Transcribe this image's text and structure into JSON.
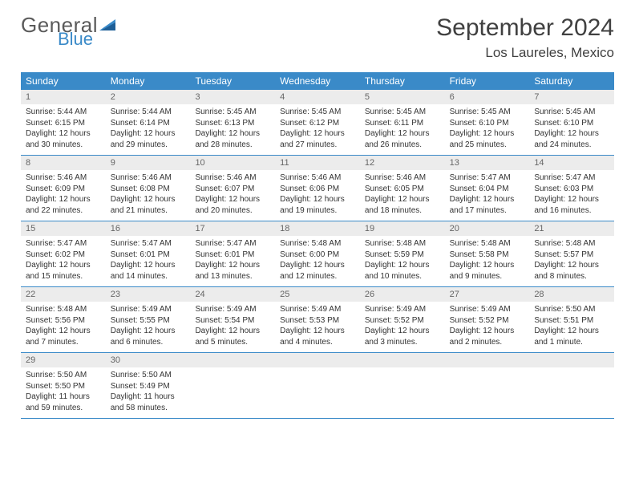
{
  "brand": {
    "word1": "General",
    "word2": "Blue",
    "word1_color": "#5a5a5a",
    "word2_color": "#3a8ac8"
  },
  "header": {
    "month_title": "September 2024",
    "location": "Los Laureles, Mexico"
  },
  "colors": {
    "header_bar": "#3a8ac8",
    "daynum_bg": "#ececec",
    "border": "#3a8ac8",
    "page_bg": "#ffffff"
  },
  "typography": {
    "title_size": 30,
    "location_size": 17,
    "weekday_size": 12,
    "daynum_size": 11,
    "body_size": 10
  },
  "weekdays": [
    "Sunday",
    "Monday",
    "Tuesday",
    "Wednesday",
    "Thursday",
    "Friday",
    "Saturday"
  ],
  "weeks": [
    [
      {
        "n": "1",
        "sr": "5:44 AM",
        "ss": "6:15 PM",
        "dl": "12 hours and 30 minutes."
      },
      {
        "n": "2",
        "sr": "5:44 AM",
        "ss": "6:14 PM",
        "dl": "12 hours and 29 minutes."
      },
      {
        "n": "3",
        "sr": "5:45 AM",
        "ss": "6:13 PM",
        "dl": "12 hours and 28 minutes."
      },
      {
        "n": "4",
        "sr": "5:45 AM",
        "ss": "6:12 PM",
        "dl": "12 hours and 27 minutes."
      },
      {
        "n": "5",
        "sr": "5:45 AM",
        "ss": "6:11 PM",
        "dl": "12 hours and 26 minutes."
      },
      {
        "n": "6",
        "sr": "5:45 AM",
        "ss": "6:10 PM",
        "dl": "12 hours and 25 minutes."
      },
      {
        "n": "7",
        "sr": "5:45 AM",
        "ss": "6:10 PM",
        "dl": "12 hours and 24 minutes."
      }
    ],
    [
      {
        "n": "8",
        "sr": "5:46 AM",
        "ss": "6:09 PM",
        "dl": "12 hours and 22 minutes."
      },
      {
        "n": "9",
        "sr": "5:46 AM",
        "ss": "6:08 PM",
        "dl": "12 hours and 21 minutes."
      },
      {
        "n": "10",
        "sr": "5:46 AM",
        "ss": "6:07 PM",
        "dl": "12 hours and 20 minutes."
      },
      {
        "n": "11",
        "sr": "5:46 AM",
        "ss": "6:06 PM",
        "dl": "12 hours and 19 minutes."
      },
      {
        "n": "12",
        "sr": "5:46 AM",
        "ss": "6:05 PM",
        "dl": "12 hours and 18 minutes."
      },
      {
        "n": "13",
        "sr": "5:47 AM",
        "ss": "6:04 PM",
        "dl": "12 hours and 17 minutes."
      },
      {
        "n": "14",
        "sr": "5:47 AM",
        "ss": "6:03 PM",
        "dl": "12 hours and 16 minutes."
      }
    ],
    [
      {
        "n": "15",
        "sr": "5:47 AM",
        "ss": "6:02 PM",
        "dl": "12 hours and 15 minutes."
      },
      {
        "n": "16",
        "sr": "5:47 AM",
        "ss": "6:01 PM",
        "dl": "12 hours and 14 minutes."
      },
      {
        "n": "17",
        "sr": "5:47 AM",
        "ss": "6:01 PM",
        "dl": "12 hours and 13 minutes."
      },
      {
        "n": "18",
        "sr": "5:48 AM",
        "ss": "6:00 PM",
        "dl": "12 hours and 12 minutes."
      },
      {
        "n": "19",
        "sr": "5:48 AM",
        "ss": "5:59 PM",
        "dl": "12 hours and 10 minutes."
      },
      {
        "n": "20",
        "sr": "5:48 AM",
        "ss": "5:58 PM",
        "dl": "12 hours and 9 minutes."
      },
      {
        "n": "21",
        "sr": "5:48 AM",
        "ss": "5:57 PM",
        "dl": "12 hours and 8 minutes."
      }
    ],
    [
      {
        "n": "22",
        "sr": "5:48 AM",
        "ss": "5:56 PM",
        "dl": "12 hours and 7 minutes."
      },
      {
        "n": "23",
        "sr": "5:49 AM",
        "ss": "5:55 PM",
        "dl": "12 hours and 6 minutes."
      },
      {
        "n": "24",
        "sr": "5:49 AM",
        "ss": "5:54 PM",
        "dl": "12 hours and 5 minutes."
      },
      {
        "n": "25",
        "sr": "5:49 AM",
        "ss": "5:53 PM",
        "dl": "12 hours and 4 minutes."
      },
      {
        "n": "26",
        "sr": "5:49 AM",
        "ss": "5:52 PM",
        "dl": "12 hours and 3 minutes."
      },
      {
        "n": "27",
        "sr": "5:49 AM",
        "ss": "5:52 PM",
        "dl": "12 hours and 2 minutes."
      },
      {
        "n": "28",
        "sr": "5:50 AM",
        "ss": "5:51 PM",
        "dl": "12 hours and 1 minute."
      }
    ],
    [
      {
        "n": "29",
        "sr": "5:50 AM",
        "ss": "5:50 PM",
        "dl": "11 hours and 59 minutes."
      },
      {
        "n": "30",
        "sr": "5:50 AM",
        "ss": "5:49 PM",
        "dl": "11 hours and 58 minutes."
      },
      {
        "empty": true
      },
      {
        "empty": true
      },
      {
        "empty": true
      },
      {
        "empty": true
      },
      {
        "empty": true
      }
    ]
  ],
  "labels": {
    "sunrise": "Sunrise:",
    "sunset": "Sunset:",
    "daylight": "Daylight:"
  }
}
